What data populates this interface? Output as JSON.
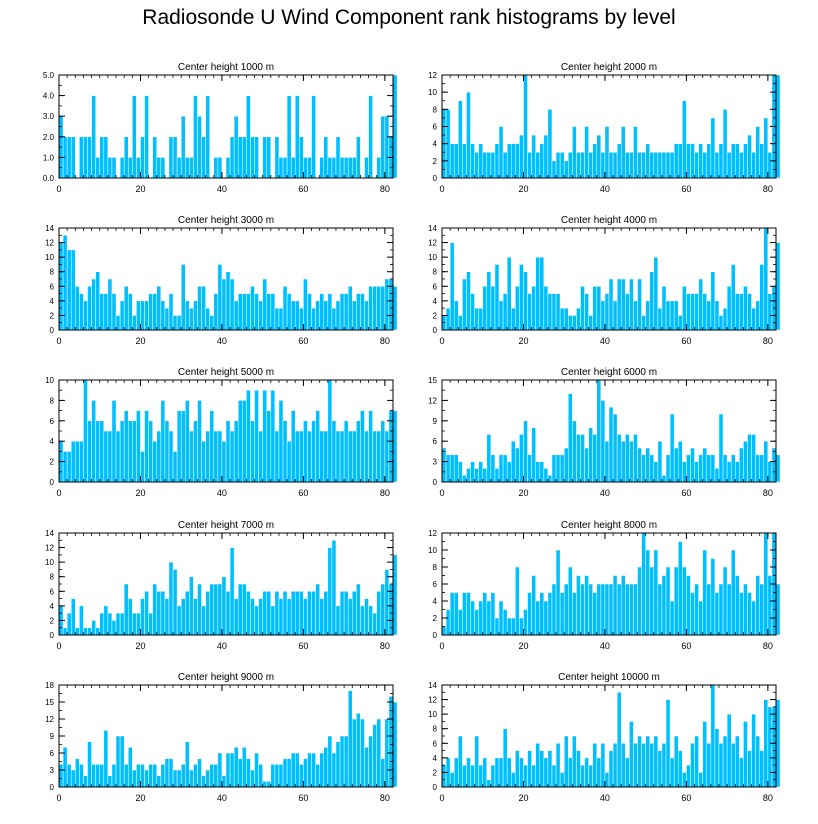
{
  "title": "Radiosonde U Wind Component rank histograms by level",
  "colors": {
    "bar_fill": "#00bfff",
    "bar_stroke": "#ffffff",
    "axis": "#000000",
    "background": "#ffffff"
  },
  "chart_data": [
    {
      "type": "bar",
      "title": "Center height 1000 m",
      "x_start": 0,
      "xlim": [
        0,
        82
      ],
      "ylim": [
        0,
        5
      ],
      "xticks": [
        0,
        20,
        40,
        60,
        80
      ],
      "yticks": [
        0,
        1,
        2,
        3,
        4,
        5
      ],
      "ytick_labels": [
        "0.0",
        "1.0",
        "2.0",
        "3.0",
        "4.0",
        "5.0"
      ],
      "values": [
        3,
        2,
        2,
        2,
        0,
        2,
        2,
        2,
        4,
        1,
        2,
        2,
        1,
        1,
        0,
        1,
        2,
        1,
        4,
        1,
        2,
        4,
        0,
        2,
        1,
        1,
        0,
        2,
        2,
        1,
        3,
        1,
        1,
        4,
        3,
        2,
        4,
        0,
        1,
        1,
        0,
        1,
        2,
        3,
        2,
        2,
        4,
        2,
        2,
        0,
        2,
        2,
        0,
        2,
        1,
        1,
        4,
        1,
        4,
        2,
        1,
        1,
        4,
        0,
        1,
        2,
        1,
        1,
        2,
        1,
        1,
        1,
        1,
        2,
        0,
        1,
        4,
        0,
        1,
        3,
        3,
        2,
        5
      ]
    },
    {
      "type": "bar",
      "title": "Center height 2000 m",
      "x_start": 0,
      "xlim": [
        0,
        82
      ],
      "ylim": [
        0,
        12
      ],
      "xticks": [
        0,
        20,
        40,
        60,
        80
      ],
      "yticks": [
        0,
        2,
        4,
        6,
        8,
        10,
        12
      ],
      "ytick_labels": [
        "0",
        "2",
        "4",
        "6",
        "8",
        "10",
        "12"
      ],
      "values": [
        8,
        8,
        4,
        4,
        9,
        4,
        10,
        4,
        3,
        4,
        3,
        3,
        3,
        4,
        6,
        3,
        4,
        4,
        4,
        5,
        12,
        3,
        5,
        3,
        4,
        5,
        8,
        2,
        3,
        3,
        2,
        3,
        6,
        3,
        3,
        6,
        3,
        4,
        5,
        3,
        6,
        3,
        3,
        4,
        6,
        3,
        3,
        6,
        3,
        3,
        4,
        3,
        3,
        3,
        3,
        3,
        3,
        4,
        4,
        9,
        4,
        4,
        3,
        4,
        3,
        4,
        7,
        3,
        4,
        8,
        3,
        4,
        4,
        3,
        4,
        5,
        3,
        6,
        4,
        7,
        3,
        12,
        12
      ]
    },
    {
      "type": "bar",
      "title": "Center height 3000 m",
      "x_start": 0,
      "xlim": [
        0,
        82
      ],
      "ylim": [
        0,
        14
      ],
      "xticks": [
        0,
        20,
        40,
        60,
        80
      ],
      "yticks": [
        0,
        2,
        4,
        6,
        8,
        10,
        12,
        14
      ],
      "ytick_labels": [
        "0",
        "2",
        "4",
        "6",
        "8",
        "10",
        "12",
        "14"
      ],
      "values": [
        12,
        13,
        11,
        11,
        6,
        5,
        4,
        6,
        7,
        8,
        5,
        5,
        7,
        5,
        2,
        4,
        6,
        5,
        2,
        4,
        4,
        4,
        5,
        5,
        6,
        4,
        3,
        5,
        2,
        2,
        9,
        4,
        3,
        4,
        6,
        6,
        3,
        2,
        5,
        9,
        7,
        8,
        7,
        4,
        5,
        5,
        5,
        6,
        5,
        4,
        7,
        5,
        5,
        3,
        3,
        6,
        5,
        4,
        4,
        3,
        7,
        5,
        3,
        4,
        5,
        4,
        5,
        3,
        4,
        5,
        5,
        6,
        4,
        5,
        5,
        4,
        6,
        6,
        6,
        6,
        7,
        7,
        6
      ]
    },
    {
      "type": "bar",
      "title": "Center height 4000 m",
      "x_start": 0,
      "xlim": [
        0,
        82
      ],
      "ylim": [
        0,
        14
      ],
      "xticks": [
        0,
        20,
        40,
        60,
        80
      ],
      "yticks": [
        0,
        2,
        4,
        6,
        8,
        10,
        12,
        14
      ],
      "ytick_labels": [
        "0",
        "2",
        "4",
        "6",
        "8",
        "10",
        "12",
        "14"
      ],
      "values": [
        2,
        3,
        12,
        4,
        2,
        7,
        8,
        5,
        3,
        3,
        6,
        8,
        6,
        9,
        4,
        5,
        10,
        3,
        6,
        9,
        8,
        5,
        6,
        10,
        10,
        6,
        5,
        5,
        5,
        3,
        3,
        2,
        2,
        3,
        6,
        5,
        2,
        6,
        6,
        4,
        5,
        7,
        4,
        7,
        7,
        5,
        7,
        4,
        7,
        2,
        4,
        8,
        10,
        3,
        6,
        4,
        4,
        4,
        2,
        6,
        5,
        5,
        5,
        7,
        5,
        4,
        8,
        4,
        2,
        3,
        6,
        9,
        5,
        5,
        6,
        5,
        3,
        4,
        9,
        14,
        5,
        6,
        12
      ]
    },
    {
      "type": "bar",
      "title": "Center height 5000 m",
      "x_start": 0,
      "xlim": [
        0,
        82
      ],
      "ylim": [
        0,
        10
      ],
      "xticks": [
        0,
        20,
        40,
        60,
        80
      ],
      "yticks": [
        0,
        2,
        4,
        6,
        8,
        10
      ],
      "ytick_labels": [
        "0",
        "2",
        "4",
        "6",
        "8",
        "10"
      ],
      "values": [
        4,
        3,
        3,
        4,
        4,
        4,
        10,
        6,
        8,
        6,
        6,
        5,
        5,
        8,
        5,
        6,
        7,
        6,
        6,
        7,
        3,
        7,
        6,
        4,
        5,
        8,
        6,
        5,
        3,
        7,
        7,
        8,
        5,
        6,
        8,
        4,
        5,
        7,
        5,
        5,
        4,
        6,
        5,
        6,
        8,
        8,
        9,
        6,
        9,
        5,
        9,
        7,
        9,
        5,
        8,
        6,
        4,
        7,
        5,
        5,
        6,
        5,
        6,
        7,
        5,
        5,
        10,
        6,
        5,
        5,
        6,
        5,
        5,
        6,
        7,
        5,
        7,
        5,
        5,
        6,
        5,
        7,
        7
      ]
    },
    {
      "type": "bar",
      "title": "Center height 6000 m",
      "x_start": 0,
      "xlim": [
        0,
        82
      ],
      "ylim": [
        0,
        15
      ],
      "xticks": [
        0,
        20,
        40,
        60,
        80
      ],
      "yticks": [
        0,
        3,
        6,
        9,
        12,
        15
      ],
      "ytick_labels": [
        "0",
        "3",
        "6",
        "9",
        "12",
        "15"
      ],
      "values": [
        5,
        4,
        4,
        4,
        3,
        1,
        2,
        3,
        2,
        3,
        2,
        7,
        4,
        2,
        4,
        4,
        3,
        6,
        5,
        7,
        9,
        4,
        8,
        3,
        3,
        2,
        1,
        4,
        4,
        4,
        5,
        13,
        9,
        7,
        7,
        5,
        8,
        7,
        15,
        12,
        6,
        11,
        10,
        7,
        6,
        7,
        6,
        7,
        5,
        4,
        5,
        4,
        3,
        6,
        1,
        4,
        10,
        5,
        6,
        3,
        4,
        5,
        3,
        4,
        5,
        4,
        4,
        2,
        10,
        4,
        3,
        4,
        3,
        5,
        6,
        7,
        7,
        4,
        4,
        6,
        3,
        5,
        4
      ]
    },
    {
      "type": "bar",
      "title": "Center height 7000 m",
      "x_start": 0,
      "xlim": [
        0,
        82
      ],
      "ylim": [
        0,
        14
      ],
      "xticks": [
        0,
        20,
        40,
        60,
        80
      ],
      "yticks": [
        0,
        2,
        4,
        6,
        8,
        10,
        12,
        14
      ],
      "ytick_labels": [
        "0",
        "2",
        "4",
        "6",
        "8",
        "10",
        "12",
        "14"
      ],
      "values": [
        4,
        1,
        3,
        5,
        1,
        4,
        1,
        1,
        2,
        1,
        3,
        4,
        3,
        2,
        3,
        3,
        7,
        5,
        3,
        3,
        5,
        6,
        3,
        7,
        6,
        6,
        5,
        10,
        9,
        4,
        5,
        6,
        8,
        5,
        7,
        4,
        6,
        7,
        7,
        7,
        8,
        6,
        12,
        5,
        7,
        7,
        6,
        5,
        4,
        5,
        6,
        6,
        4,
        6,
        5,
        6,
        5,
        6,
        6,
        6,
        5,
        6,
        6,
        7,
        5,
        6,
        12,
        13,
        4,
        6,
        6,
        5,
        6,
        7,
        4,
        5,
        4,
        3,
        6,
        7,
        9,
        7,
        11
      ]
    },
    {
      "type": "bar",
      "title": "Center height 8000 m",
      "x_start": 0,
      "xlim": [
        0,
        82
      ],
      "ylim": [
        0,
        12
      ],
      "xticks": [
        0,
        20,
        40,
        60,
        80
      ],
      "yticks": [
        0,
        2,
        4,
        6,
        8,
        10,
        12
      ],
      "ytick_labels": [
        "0",
        "2",
        "4",
        "6",
        "8",
        "10",
        "12"
      ],
      "values": [
        1,
        3,
        5,
        5,
        3,
        5,
        5,
        4,
        3,
        4,
        5,
        4,
        5,
        2,
        4,
        3,
        2,
        2,
        8,
        2,
        3,
        5,
        7,
        4,
        5,
        4,
        5,
        6,
        10,
        5,
        6,
        8,
        5,
        7,
        6,
        7,
        6,
        5,
        6,
        6,
        6,
        6,
        7,
        6,
        7,
        6,
        6,
        6,
        8,
        12,
        10,
        8,
        10,
        6,
        7,
        8,
        4,
        8,
        11,
        8,
        7,
        5,
        6,
        4,
        10,
        6,
        9,
        5,
        6,
        8,
        6,
        10,
        7,
        5,
        6,
        5,
        4,
        7,
        6,
        12,
        7,
        12,
        6
      ]
    },
    {
      "type": "bar",
      "title": "Center height 9000 m",
      "x_start": 0,
      "xlim": [
        0,
        82
      ],
      "ylim": [
        0,
        18
      ],
      "xticks": [
        0,
        20,
        40,
        60,
        80
      ],
      "yticks": [
        0,
        3,
        6,
        9,
        12,
        15,
        18
      ],
      "ytick_labels": [
        "0",
        "3",
        "6",
        "9",
        "12",
        "15",
        "18"
      ],
      "values": [
        4,
        7,
        4,
        3,
        5,
        4,
        2,
        8,
        4,
        4,
        4,
        10,
        2,
        4,
        9,
        9,
        4,
        7,
        3,
        4,
        4,
        3,
        4,
        4,
        2,
        4,
        5,
        5,
        3,
        3,
        4,
        8,
        3,
        4,
        5,
        2,
        3,
        4,
        4,
        6,
        2,
        6,
        6,
        7,
        5,
        7,
        5,
        3,
        6,
        4,
        1,
        1,
        4,
        4,
        4,
        5,
        5,
        6,
        6,
        4,
        5,
        6,
        6,
        4,
        6,
        7,
        9,
        6,
        8,
        9,
        9,
        17,
        12,
        13,
        12,
        7,
        9,
        11,
        12,
        5,
        12,
        16,
        15
      ]
    },
    {
      "type": "bar",
      "title": "Center height 10000 m",
      "x_start": 0,
      "xlim": [
        0,
        82
      ],
      "ylim": [
        0,
        14
      ],
      "xticks": [
        0,
        20,
        40,
        60,
        80
      ],
      "yticks": [
        0,
        2,
        4,
        6,
        8,
        10,
        12,
        14
      ],
      "ytick_labels": [
        "0",
        "2",
        "4",
        "6",
        "8",
        "10",
        "12",
        "14"
      ],
      "values": [
        3,
        4,
        2,
        4,
        7,
        3,
        4,
        3,
        7,
        3,
        4,
        1,
        3,
        4,
        4,
        8,
        4,
        2,
        5,
        4,
        3,
        5,
        3,
        6,
        5,
        4,
        5,
        3,
        6,
        2,
        7,
        4,
        7,
        5,
        3,
        4,
        3,
        6,
        4,
        6,
        2,
        5,
        6,
        13,
        6,
        4,
        9,
        6,
        7,
        6,
        7,
        6,
        7,
        5,
        6,
        12,
        4,
        7,
        5,
        2,
        3,
        6,
        7,
        2,
        9,
        6,
        14,
        8,
        6,
        7,
        10,
        6,
        7,
        4,
        9,
        5,
        10,
        7,
        5,
        12,
        11,
        11,
        12
      ]
    }
  ]
}
